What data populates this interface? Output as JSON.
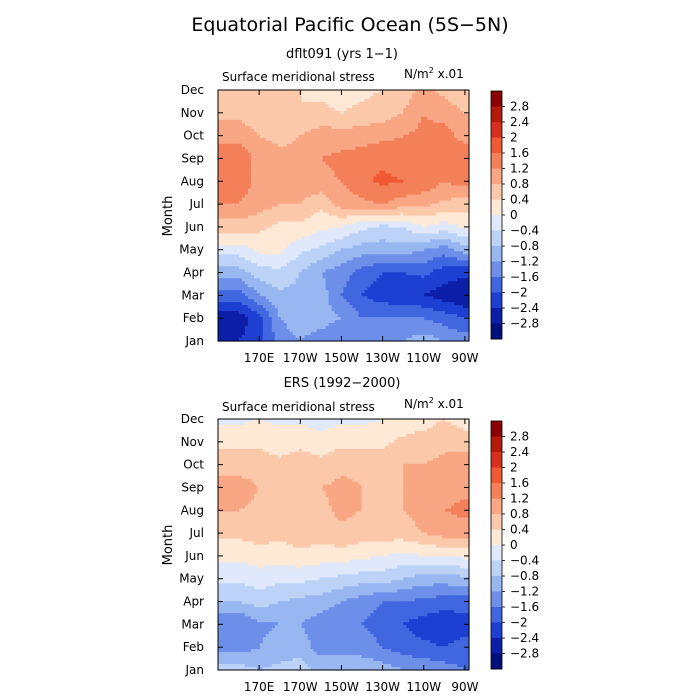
{
  "figure": {
    "title": "Equatorial Pacific Ocean (5S−5N)"
  },
  "colorscale": {
    "levels": [
      "2.8",
      "2.4",
      "2",
      "1.6",
      "1.2",
      "0.8",
      "0.4",
      "0",
      "−0.4",
      "−0.8",
      "−1.2",
      "−1.6",
      "−2",
      "−2.4",
      "−2.8"
    ],
    "colors": [
      "#8b0000",
      "#b41b0b",
      "#d7301f",
      "#ef5a32",
      "#f4805a",
      "#f8a683",
      "#fbc8aa",
      "#fee8d6",
      "#dfe9fb",
      "#bcd3f7",
      "#98b7f1",
      "#6d8fe9",
      "#4066e0",
      "#1d3fd2",
      "#0c1fa8",
      "#000f7a"
    ]
  },
  "chart_data": [
    {
      "type": "heatmap",
      "title": "dflt091 (yrs 1−1)",
      "subtitle": "Surface meridional stress",
      "units_main": "N/m",
      "units_sup": "2",
      "units_tail": " x.01",
      "ylabel": "Month",
      "xlabel": "",
      "x_categories": [
        "170E",
        "170W",
        "150W",
        "130W",
        "110W",
        "90W"
      ],
      "y_categories": [
        "Jan",
        "Feb",
        "Mar",
        "Apr",
        "May",
        "Jun",
        "Jul",
        "Aug",
        "Sep",
        "Oct",
        "Nov",
        "Dec"
      ],
      "grid_lon": [
        160,
        170,
        180,
        190,
        200,
        210,
        220,
        230,
        240,
        250,
        260,
        270
      ],
      "values": [
        [
          -2.4,
          -2.2,
          -1.4,
          -1.2,
          -1.4,
          -1.6,
          -1.4,
          -1.4,
          -1.2,
          -1.0,
          -1.2,
          -1.4
        ],
        [
          -2.6,
          -2.2,
          -1.2,
          -1.0,
          -1.0,
          -1.2,
          -1.6,
          -1.6,
          -1.6,
          -1.6,
          -1.8,
          -2.0
        ],
        [
          -1.8,
          -1.2,
          -0.9,
          -0.9,
          -1.0,
          -1.6,
          -2.0,
          -2.2,
          -2.3,
          -2.4,
          -2.6,
          -2.8
        ],
        [
          -1.0,
          -0.6,
          -0.5,
          -0.8,
          -1.2,
          -1.4,
          -1.8,
          -2.0,
          -2.0,
          -1.9,
          -2.2,
          -2.3
        ],
        [
          -0.2,
          0.1,
          0.1,
          -0.3,
          -0.5,
          -0.8,
          -1.0,
          -1.0,
          -1.0,
          -1.2,
          -1.4,
          -1.0
        ],
        [
          0.6,
          0.5,
          0.3,
          0.3,
          0.1,
          0.0,
          -0.3,
          -0.5,
          -0.4,
          0.0,
          -0.2,
          0.1
        ],
        [
          1.2,
          1.0,
          0.8,
          0.8,
          0.5,
          1.0,
          1.1,
          1.2,
          1.0,
          0.9,
          0.7,
          0.6
        ],
        [
          1.4,
          1.1,
          1.2,
          1.0,
          1.1,
          1.2,
          1.5,
          1.7,
          1.6,
          1.5,
          1.2,
          1.4
        ],
        [
          1.6,
          1.0,
          0.9,
          0.9,
          1.2,
          1.3,
          1.4,
          1.5,
          1.4,
          1.3,
          1.5,
          1.6
        ],
        [
          1.0,
          0.8,
          0.7,
          0.8,
          1.0,
          1.0,
          1.0,
          1.1,
          1.2,
          1.3,
          1.4,
          1.0
        ],
        [
          0.7,
          0.6,
          0.5,
          0.4,
          0.5,
          0.4,
          0.5,
          0.6,
          0.8,
          1.2,
          1.0,
          0.8
        ],
        [
          0.6,
          0.7,
          0.5,
          0.4,
          0.3,
          0.2,
          0.3,
          0.4,
          0.6,
          0.9,
          0.7,
          0.5
        ]
      ],
      "grid": false,
      "legend": "right"
    },
    {
      "type": "heatmap",
      "title": "ERS (1992−2000)",
      "subtitle": "Surface meridional stress",
      "units_main": "N/m",
      "units_sup": "2",
      "units_tail": " x.01",
      "ylabel": "Month",
      "xlabel": "",
      "x_categories": [
        "170E",
        "170W",
        "150W",
        "130W",
        "110W",
        "90W"
      ],
      "y_categories": [
        "Jan",
        "Feb",
        "Mar",
        "Apr",
        "May",
        "Jun",
        "Jul",
        "Aug",
        "Sep",
        "Oct",
        "Nov",
        "Dec"
      ],
      "grid_lon": [
        160,
        170,
        180,
        190,
        200,
        210,
        220,
        230,
        240,
        250,
        260,
        270
      ],
      "values": [
        [
          -0.6,
          -0.8,
          -0.7,
          -0.6,
          -0.9,
          -1.0,
          -0.9,
          -1.0,
          -1.2,
          -1.3,
          -1.4,
          -1.6
        ],
        [
          -1.4,
          -1.2,
          -1.0,
          -1.0,
          -1.4,
          -1.3,
          -1.4,
          -1.6,
          -1.8,
          -1.9,
          -2.0,
          -1.8
        ],
        [
          -1.6,
          -1.3,
          -1.2,
          -1.2,
          -1.4,
          -1.6,
          -1.6,
          -1.8,
          -2.0,
          -2.2,
          -2.3,
          -2.2
        ],
        [
          -0.8,
          -0.6,
          -0.8,
          -0.9,
          -1.0,
          -1.2,
          -1.4,
          -1.6,
          -1.6,
          -1.7,
          -1.8,
          -1.8
        ],
        [
          -0.3,
          -0.2,
          -0.3,
          -0.3,
          -0.4,
          -0.5,
          -0.6,
          -0.6,
          -0.8,
          -1.0,
          -1.0,
          -0.9
        ],
        [
          0.1,
          0.2,
          0.2,
          0.3,
          0.2,
          0.2,
          0.1,
          0.0,
          -0.1,
          0.0,
          0.0,
          0.1
        ],
        [
          0.5,
          0.6,
          0.5,
          0.6,
          0.6,
          0.7,
          0.6,
          0.6,
          0.6,
          0.8,
          1.0,
          1.0
        ],
        [
          0.8,
          0.7,
          0.6,
          0.8,
          0.7,
          0.9,
          0.8,
          0.8,
          0.8,
          1.0,
          1.2,
          1.3
        ],
        [
          1.0,
          0.8,
          0.7,
          0.7,
          0.8,
          0.9,
          0.8,
          0.7,
          0.8,
          0.9,
          1.0,
          1.1
        ],
        [
          0.6,
          0.6,
          0.5,
          0.6,
          0.5,
          0.7,
          0.7,
          0.6,
          0.8,
          0.8,
          0.9,
          1.0
        ],
        [
          0.3,
          0.3,
          0.2,
          0.3,
          0.2,
          0.3,
          0.3,
          0.3,
          0.5,
          0.6,
          0.7,
          0.6
        ],
        [
          -0.1,
          0.0,
          -0.1,
          -0.1,
          -0.2,
          -0.1,
          -0.1,
          0.0,
          0.1,
          0.2,
          0.4,
          0.2
        ]
      ],
      "grid": false,
      "legend": "right"
    }
  ]
}
